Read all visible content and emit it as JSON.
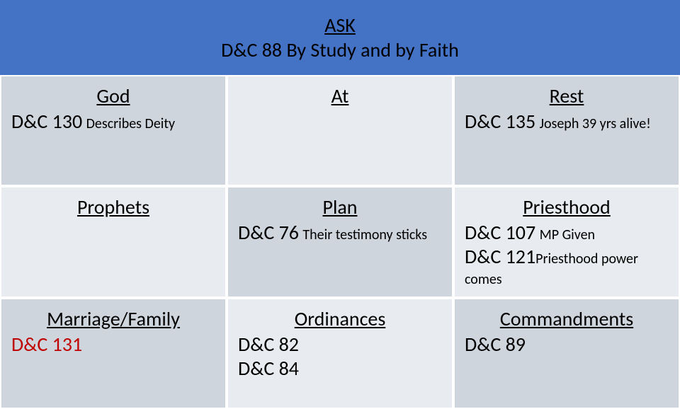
{
  "header": {
    "title": "ASK",
    "subtitle": "D&C 88 By Study and by Faith"
  },
  "cells": [
    {
      "title": "God",
      "ref1": "D&C 130",
      "desc1": "Describes Deity"
    },
    {
      "title": "At"
    },
    {
      "title": "Rest",
      "ref1": "D&C 135",
      "desc1": "Joseph 39 yrs alive!"
    },
    {
      "title": "Prophets"
    },
    {
      "title": "Plan",
      "ref1": "D&C 76",
      "desc1": "Their testimony sticks"
    },
    {
      "title": "Priesthood",
      "ref1": "D&C 107",
      "desc1": "MP Given",
      "ref2": "D&C 121",
      "desc2": "Priesthood power comes"
    },
    {
      "title": "Marriage/Family",
      "ref1": "D&C 131"
    },
    {
      "title": "Ordinances",
      "ref1": "D&C 82",
      "ref2": "D&C 84"
    },
    {
      "title": "Commandments",
      "ref1": "D&C 89"
    }
  ],
  "colors": {
    "headerBg": "#4472c4",
    "cellBgDark": "#cfd5dd",
    "cellBgLight": "#e8ebef",
    "textRed": "#c00000",
    "textDefault": "#000000",
    "pageBg": "#ffffff"
  }
}
